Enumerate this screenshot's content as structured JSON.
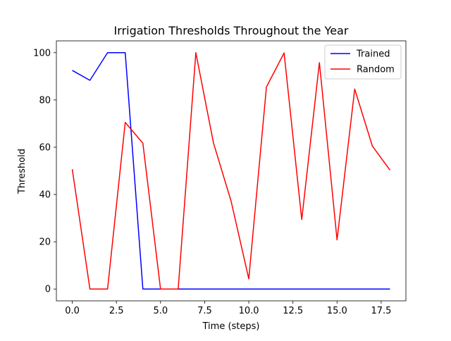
{
  "chart_data": {
    "type": "line",
    "title": "Irrigation Thresholds Throughout the Year",
    "xlabel": "Time (steps)",
    "ylabel": "Threshold",
    "xlim": [
      -0.9,
      18.9
    ],
    "ylim": [
      -5,
      105
    ],
    "x_ticks": [
      0.0,
      2.5,
      5.0,
      7.5,
      10.0,
      12.5,
      15.0,
      17.5
    ],
    "x_tick_labels": [
      "0.0",
      "2.5",
      "5.0",
      "7.5",
      "10.0",
      "12.5",
      "15.0",
      "17.5"
    ],
    "y_ticks": [
      0,
      20,
      40,
      60,
      80,
      100
    ],
    "y_tick_labels": [
      "0",
      "20",
      "40",
      "60",
      "80",
      "100"
    ],
    "grid": false,
    "legend_position": "top-right",
    "x": [
      0,
      1,
      2,
      3,
      4,
      5,
      6,
      7,
      8,
      9,
      10,
      11,
      12,
      13,
      14,
      15,
      16,
      17,
      18
    ],
    "series": [
      {
        "name": "Trained",
        "color": "#0000ff",
        "values": [
          92.5,
          88.3,
          100,
          100,
          0,
          0,
          0,
          0,
          0,
          0,
          0,
          0,
          0,
          0,
          0,
          0,
          0,
          0,
          0
        ]
      },
      {
        "name": "Random",
        "color": "#ff0000",
        "values": [
          50.7,
          0,
          0,
          70.5,
          61.7,
          0,
          0,
          100,
          61.8,
          37.1,
          4.3,
          85.5,
          99.9,
          29.4,
          95.8,
          20.8,
          84.6,
          60.5,
          50.3
        ]
      }
    ]
  }
}
